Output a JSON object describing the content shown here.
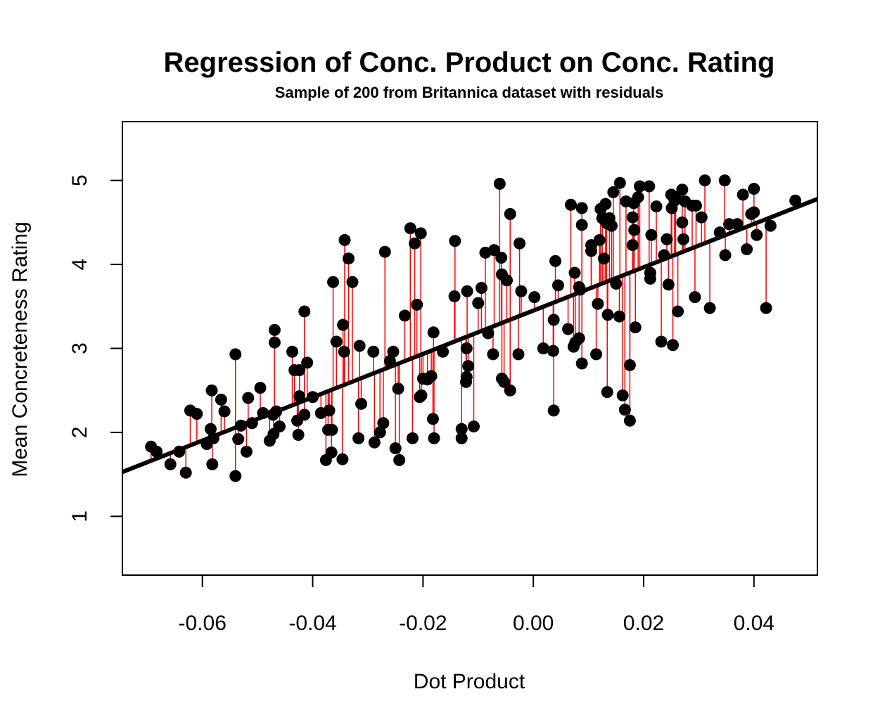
{
  "chart_data": {
    "type": "scatter",
    "title": "Regression of Conc. Product on Conc. Rating",
    "subtitle": "Sample of 200 from Britannica dataset with residuals",
    "xlabel": "Dot Product",
    "ylabel": "Mean Concreteness Rating",
    "xlim": [
      -0.0745,
      0.0515
    ],
    "ylim": [
      0.3,
      5.7
    ],
    "x_ticks": [
      -0.06,
      -0.04,
      -0.02,
      0.0,
      0.02,
      0.04
    ],
    "x_tick_labels": [
      "-0.06",
      "-0.04",
      "-0.02",
      "0.00",
      "0.02",
      "0.04"
    ],
    "y_ticks": [
      1,
      2,
      3,
      4,
      5
    ],
    "y_tick_labels": [
      "1",
      "2",
      "3",
      "4",
      "5"
    ],
    "regression_line": {
      "intercept": 3.45,
      "slope": 25.8
    },
    "colors": {
      "points": "#000000",
      "residuals": "#ff0000",
      "line": "#000000"
    },
    "grid": false,
    "points": [
      [
        -0.0693,
        1.83
      ],
      [
        -0.0683,
        1.77
      ],
      [
        -0.0658,
        1.62
      ],
      [
        -0.0642,
        1.77
      ],
      [
        -0.063,
        1.52
      ],
      [
        -0.0622,
        2.26
      ],
      [
        -0.061,
        2.22
      ],
      [
        -0.0592,
        1.86
      ],
      [
        -0.0585,
        2.04
      ],
      [
        -0.0583,
        2.5
      ],
      [
        -0.0582,
        1.62
      ],
      [
        -0.058,
        1.93
      ],
      [
        -0.0566,
        2.39
      ],
      [
        -0.056,
        2.25
      ],
      [
        -0.054,
        1.48
      ],
      [
        -0.054,
        2.93
      ],
      [
        -0.0535,
        1.92
      ],
      [
        -0.053,
        2.08
      ],
      [
        -0.052,
        1.77
      ],
      [
        -0.0517,
        2.41
      ],
      [
        -0.051,
        2.11
      ],
      [
        -0.0495,
        2.53
      ],
      [
        -0.049,
        2.23
      ],
      [
        -0.0478,
        1.9
      ],
      [
        -0.0472,
        2.21
      ],
      [
        -0.0471,
        1.98
      ],
      [
        -0.0469,
        3.22
      ],
      [
        -0.0469,
        3.07
      ],
      [
        -0.0466,
        2.25
      ],
      [
        -0.046,
        2.07
      ],
      [
        -0.0437,
        2.96
      ],
      [
        -0.0433,
        2.74
      ],
      [
        -0.0428,
        2.14
      ],
      [
        -0.0426,
        1.97
      ],
      [
        -0.0424,
        2.43
      ],
      [
        -0.0424,
        2.74
      ],
      [
        -0.0415,
        3.44
      ],
      [
        -0.0415,
        2.21
      ],
      [
        -0.041,
        2.83
      ],
      [
        -0.04,
        2.42
      ],
      [
        -0.0385,
        2.23
      ],
      [
        -0.0376,
        1.67
      ],
      [
        -0.0372,
        2.03
      ],
      [
        -0.037,
        2.26
      ],
      [
        -0.0366,
        1.76
      ],
      [
        -0.0365,
        2.03
      ],
      [
        -0.0363,
        3.79
      ],
      [
        -0.0357,
        3.08
      ],
      [
        -0.0346,
        1.68
      ],
      [
        -0.0345,
        3.28
      ],
      [
        -0.0343,
        2.96
      ],
      [
        -0.0342,
        4.29
      ],
      [
        -0.0335,
        4.07
      ],
      [
        -0.0328,
        3.79
      ],
      [
        -0.0317,
        1.93
      ],
      [
        -0.0315,
        3.03
      ],
      [
        -0.0312,
        2.34
      ],
      [
        -0.029,
        2.96
      ],
      [
        -0.0288,
        1.88
      ],
      [
        -0.0278,
        2.0
      ],
      [
        -0.0272,
        2.11
      ],
      [
        -0.0269,
        4.15
      ],
      [
        -0.026,
        2.85
      ],
      [
        -0.0254,
        2.96
      ],
      [
        -0.025,
        1.81
      ],
      [
        -0.0245,
        2.52
      ],
      [
        -0.0243,
        1.67
      ],
      [
        -0.0233,
        3.39
      ],
      [
        -0.0223,
        4.43
      ],
      [
        -0.0219,
        1.93
      ],
      [
        -0.0215,
        4.25
      ],
      [
        -0.0211,
        3.52
      ],
      [
        -0.0206,
        2.42
      ],
      [
        -0.0204,
        4.37
      ],
      [
        -0.0203,
        2.44
      ],
      [
        -0.02,
        2.64
      ],
      [
        -0.0192,
        2.63
      ],
      [
        -0.0185,
        2.67
      ],
      [
        -0.0182,
        2.16
      ],
      [
        -0.0181,
        3.19
      ],
      [
        -0.018,
        1.93
      ],
      [
        -0.0164,
        2.96
      ],
      [
        -0.0143,
        3.62
      ],
      [
        -0.0142,
        4.28
      ],
      [
        -0.013,
        2.04
      ],
      [
        -0.013,
        1.93
      ],
      [
        -0.0122,
        2.6
      ],
      [
        -0.0121,
        2.66
      ],
      [
        -0.0121,
        3.0
      ],
      [
        -0.012,
        3.68
      ],
      [
        -0.0118,
        2.79
      ],
      [
        -0.0108,
        2.07
      ],
      [
        -0.01,
        3.54
      ],
      [
        -0.0094,
        3.72
      ],
      [
        -0.0087,
        4.14
      ],
      [
        -0.0082,
        3.18
      ],
      [
        -0.0073,
        2.93
      ],
      [
        -0.0071,
        4.17
      ],
      [
        -0.0061,
        4.96
      ],
      [
        -0.0058,
        4.08
      ],
      [
        -0.0057,
        3.88
      ],
      [
        -0.0057,
        2.64
      ],
      [
        -0.0053,
        2.6
      ],
      [
        -0.0048,
        3.81
      ],
      [
        -0.0042,
        4.6
      ],
      [
        -0.0042,
        2.5
      ],
      [
        -0.0027,
        2.93
      ],
      [
        -0.0025,
        4.25
      ],
      [
        -0.0022,
        3.68
      ],
      [
        0.0002,
        3.61
      ],
      [
        0.0018,
        3.0
      ],
      [
        0.0036,
        2.97
      ],
      [
        0.0037,
        2.26
      ],
      [
        0.0037,
        3.34
      ],
      [
        0.004,
        4.04
      ],
      [
        0.0045,
        3.75
      ],
      [
        0.0063,
        3.23
      ],
      [
        0.0068,
        4.71
      ],
      [
        0.0073,
        3.02
      ],
      [
        0.0075,
        3.9
      ],
      [
        0.0076,
        3.07
      ],
      [
        0.0083,
        3.73
      ],
      [
        0.0083,
        3.12
      ],
      [
        0.0085,
        3.7
      ],
      [
        0.0088,
        4.67
      ],
      [
        0.0088,
        4.47
      ],
      [
        0.0088,
        2.82
      ],
      [
        0.0105,
        4.23
      ],
      [
        0.0105,
        4.16
      ],
      [
        0.0114,
        2.93
      ],
      [
        0.0117,
        3.53
      ],
      [
        0.012,
        4.29
      ],
      [
        0.0122,
        4.66
      ],
      [
        0.0125,
        4.55
      ],
      [
        0.0128,
        4.07
      ],
      [
        0.0131,
        4.72
      ],
      [
        0.0133,
        4.49
      ],
      [
        0.0134,
        2.48
      ],
      [
        0.0135,
        3.4
      ],
      [
        0.0138,
        4.55
      ],
      [
        0.0142,
        4.46
      ],
      [
        0.0145,
        4.86
      ],
      [
        0.015,
        3.77
      ],
      [
        0.0156,
        3.38
      ],
      [
        0.0157,
        4.97
      ],
      [
        0.0162,
        2.44
      ],
      [
        0.0166,
        2.27
      ],
      [
        0.0168,
        4.75
      ],
      [
        0.0175,
        2.8
      ],
      [
        0.0175,
        2.14
      ],
      [
        0.018,
        4.23
      ],
      [
        0.018,
        4.56
      ],
      [
        0.0182,
        4.73
      ],
      [
        0.0183,
        4.41
      ],
      [
        0.0185,
        3.25
      ],
      [
        0.019,
        4.8
      ],
      [
        0.0193,
        4.93
      ],
      [
        0.021,
        4.93
      ],
      [
        0.0212,
        3.9
      ],
      [
        0.0212,
        3.83
      ],
      [
        0.0214,
        4.35
      ],
      [
        0.0223,
        4.69
      ],
      [
        0.0232,
        3.08
      ],
      [
        0.0237,
        4.11
      ],
      [
        0.0242,
        4.3
      ],
      [
        0.0245,
        3.76
      ],
      [
        0.025,
        4.83
      ],
      [
        0.0251,
        4.67
      ],
      [
        0.0253,
        3.04
      ],
      [
        0.0256,
        4.76
      ],
      [
        0.0258,
        4.8
      ],
      [
        0.0262,
        3.44
      ],
      [
        0.027,
        4.5
      ],
      [
        0.027,
        4.89
      ],
      [
        0.0272,
        4.3
      ],
      [
        0.0275,
        4.75
      ],
      [
        0.0288,
        4.7
      ],
      [
        0.0293,
        3.61
      ],
      [
        0.0295,
        4.7
      ],
      [
        0.0305,
        4.56
      ],
      [
        0.0311,
        5.0
      ],
      [
        0.032,
        3.48
      ],
      [
        0.0338,
        4.38
      ],
      [
        0.0347,
        5.0
      ],
      [
        0.0348,
        4.11
      ],
      [
        0.0355,
        4.48
      ],
      [
        0.037,
        4.48
      ],
      [
        0.038,
        4.83
      ],
      [
        0.0387,
        4.18
      ],
      [
        0.0395,
        4.6
      ],
      [
        0.04,
        4.9
      ],
      [
        0.04,
        4.62
      ],
      [
        0.0405,
        4.35
      ],
      [
        0.0422,
        3.48
      ],
      [
        0.043,
        4.46
      ],
      [
        0.0475,
        4.76
      ]
    ]
  }
}
